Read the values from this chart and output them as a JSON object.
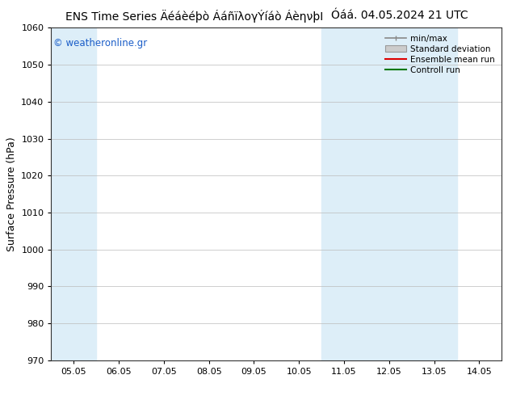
{
  "title_left": "ENS Time Series Äéáèéþò ÁáñïλογÝíáò ÁèηνþΙ",
  "title_right": "Óáá. 04.05.2024 21 UTC",
  "ylabel": "Surface Pressure (hPa)",
  "ylim": [
    970,
    1060
  ],
  "yticks": [
    970,
    980,
    990,
    1000,
    1010,
    1020,
    1030,
    1040,
    1050,
    1060
  ],
  "xtick_labels": [
    "05.05",
    "06.05",
    "07.05",
    "08.05",
    "09.05",
    "10.05",
    "11.05",
    "12.05",
    "13.05",
    "14.05"
  ],
  "band_color": "#ddeef8",
  "background_color": "#ffffff",
  "watermark": "© weatheronline.gr",
  "watermark_color": "#1a5dc8",
  "legend_items": [
    "min/max",
    "Standard deviation",
    "Ensemble mean run",
    "Controll run"
  ],
  "legend_line_colors": [
    "#888888",
    "#aaaaaa",
    "#dd0000",
    "#007700"
  ],
  "title_fontsize": 10,
  "ylabel_fontsize": 9,
  "tick_fontsize": 8,
  "legend_fontsize": 7.5
}
